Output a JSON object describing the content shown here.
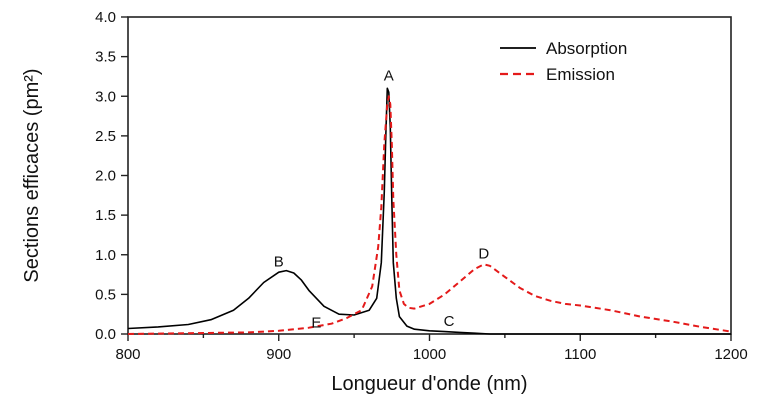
{
  "chart_data": {
    "type": "line",
    "title": "",
    "xlabel": "Longueur d'onde (nm)",
    "ylabel": "Sections efficaces (pm²)",
    "xlim": [
      800,
      1200
    ],
    "ylim": [
      0,
      4.0
    ],
    "x_ticks": [
      800,
      900,
      1000,
      1100,
      1200
    ],
    "x_tick_labels": [
      "800",
      "900",
      "1000",
      "1100",
      "1200"
    ],
    "y_ticks": [
      0,
      0.5,
      1.0,
      1.5,
      2.0,
      2.5,
      3.0,
      3.5,
      4.0
    ],
    "y_tick_labels": [
      "0.0",
      "0.5",
      "1.0",
      "1.5",
      "2.0",
      "2.5",
      "3.0",
      "3.5",
      "4.0"
    ],
    "grid": false,
    "legend_position": "top-right",
    "series": [
      {
        "name": "Absorption",
        "color": "#000000",
        "style": "solid",
        "x": [
          800,
          820,
          840,
          855,
          870,
          880,
          890,
          900,
          905,
          910,
          915,
          920,
          930,
          940,
          950,
          960,
          965,
          968,
          970,
          971,
          972,
          973,
          974,
          975,
          976,
          978,
          980,
          985,
          990,
          1000,
          1010,
          1020,
          1030,
          1040,
          1060,
          1100,
          1150,
          1200
        ],
        "y": [
          0.07,
          0.09,
          0.12,
          0.18,
          0.3,
          0.45,
          0.65,
          0.78,
          0.8,
          0.77,
          0.68,
          0.55,
          0.35,
          0.25,
          0.24,
          0.3,
          0.45,
          0.9,
          1.8,
          2.5,
          3.1,
          3.05,
          2.6,
          1.7,
          0.9,
          0.45,
          0.22,
          0.1,
          0.06,
          0.04,
          0.03,
          0.02,
          0.01,
          0.0,
          0.0,
          0.0,
          0.0,
          0.0
        ]
      },
      {
        "name": "Emission",
        "color": "#e41a1a",
        "style": "dashed",
        "x": [
          800,
          840,
          880,
          900,
          920,
          935,
          945,
          955,
          962,
          966,
          968,
          970,
          972,
          973,
          974,
          975,
          976,
          978,
          980,
          983,
          986,
          990,
          1000,
          1010,
          1020,
          1030,
          1036,
          1040,
          1050,
          1060,
          1070,
          1080,
          1090,
          1100,
          1120,
          1140,
          1160,
          1180,
          1200
        ],
        "y": [
          0.0,
          0.01,
          0.02,
          0.04,
          0.08,
          0.13,
          0.2,
          0.3,
          0.6,
          1.1,
          1.6,
          2.4,
          2.9,
          3.0,
          2.9,
          2.4,
          1.7,
          1.0,
          0.55,
          0.38,
          0.33,
          0.32,
          0.38,
          0.5,
          0.66,
          0.82,
          0.88,
          0.86,
          0.72,
          0.58,
          0.48,
          0.42,
          0.38,
          0.36,
          0.3,
          0.22,
          0.16,
          0.09,
          0.03
        ]
      }
    ],
    "annotations": [
      {
        "text": "A",
        "x": 973,
        "y": 3.2
      },
      {
        "text": "B",
        "x": 900,
        "y": 0.85
      },
      {
        "text": "C",
        "x": 1013,
        "y": 0.1
      },
      {
        "text": "D",
        "x": 1036,
        "y": 0.95
      },
      {
        "text": "E",
        "x": 925,
        "y": 0.08
      }
    ]
  }
}
